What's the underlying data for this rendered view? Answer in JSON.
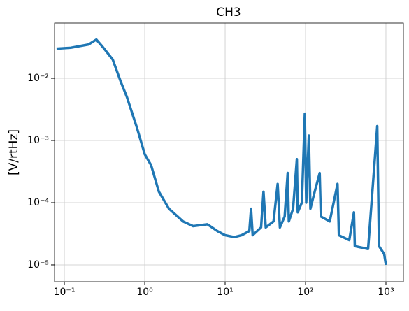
{
  "chart_data": {
    "type": "line",
    "title": "CH3",
    "y_label": "[V/rtHz]",
    "color": "#1f77b4",
    "log_x": true,
    "log_y": true,
    "grid": true,
    "x": [
      0.08,
      0.12,
      0.2,
      0.25,
      0.3,
      0.4,
      0.5,
      0.6,
      0.8,
      1,
      1.2,
      1.5,
      2,
      3,
      4,
      6,
      8,
      10,
      13,
      16,
      20,
      21,
      22,
      28,
      30,
      32,
      40,
      45,
      48,
      55,
      60,
      62,
      70,
      78,
      80,
      90,
      98,
      102,
      110,
      115,
      130,
      150,
      155,
      200,
      250,
      260,
      350,
      400,
      410,
      600,
      780,
      820,
      950,
      1000
    ],
    "values": [
      0.03,
      0.031,
      0.035,
      0.042,
      0.032,
      0.02,
      0.009,
      0.005,
      0.0016,
      0.0006,
      0.0004,
      0.00015,
      8e-05,
      5e-05,
      4.2e-05,
      4.5e-05,
      3.5e-05,
      3e-05,
      2.8e-05,
      3e-05,
      3.5e-05,
      8e-05,
      3e-05,
      4e-05,
      0.00015,
      4e-05,
      5e-05,
      0.0002,
      4e-05,
      6e-05,
      0.0003,
      5e-05,
      8e-05,
      0.0005,
      7e-05,
      0.0001,
      0.0027,
      0.0001,
      0.0012,
      8e-05,
      0.00015,
      0.0003,
      6e-05,
      5e-05,
      0.0002,
      3e-05,
      2.5e-05,
      7e-05,
      2e-05,
      1.8e-05,
      0.0017,
      2e-05,
      1.5e-05,
      1e-05
    ],
    "xlim": [
      0.0755,
      1650
    ],
    "ylim": [
      5.37e-06,
      0.0773
    ],
    "xticks": [
      {
        "value": 0.1,
        "label": "10⁻¹"
      },
      {
        "value": 1,
        "label": "10⁰"
      },
      {
        "value": 10,
        "label": "10¹"
      },
      {
        "value": 100,
        "label": "10²"
      },
      {
        "value": 1000,
        "label": "10³"
      }
    ],
    "yticks": [
      {
        "value": 1e-05,
        "label": "10⁻⁵"
      },
      {
        "value": 0.0001,
        "label": "10⁻⁴"
      },
      {
        "value": 0.001,
        "label": "10⁻³"
      },
      {
        "value": 0.01,
        "label": "10⁻²"
      }
    ]
  }
}
